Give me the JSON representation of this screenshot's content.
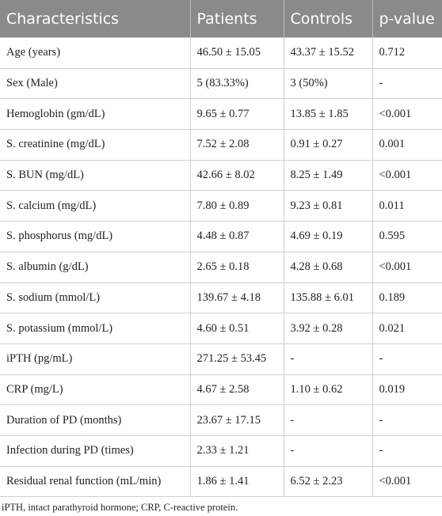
{
  "table": {
    "header": [
      "Characteristics",
      "Patients",
      "Controls",
      "p-value"
    ],
    "rows": [
      [
        "Age (years)",
        "46.50 ± 15.05",
        "43.37 ± 15.52",
        "0.712"
      ],
      [
        "Sex (Male)",
        "5 (83.33%)",
        "3 (50%)",
        "-"
      ],
      [
        "Hemoglobin (gm/dL)",
        "9.65 ± 0.77",
        "13.85 ± 1.85",
        "<0.001"
      ],
      [
        "S. creatinine (mg/dL)",
        "7.52 ± 2.08",
        "0.91 ± 0.27",
        "0.001"
      ],
      [
        "S. BUN (mg/dL)",
        "42.66 ± 8.02",
        "8.25 ± 1.49",
        "<0.001"
      ],
      [
        "S. calcium (mg/dL)",
        "7.80 ± 0.89",
        "9.23 ± 0.81",
        "0.011"
      ],
      [
        "S. phosphorus (mg/dL)",
        "4.48 ± 0.87",
        "4.69 ± 0.19",
        "0.595"
      ],
      [
        "S. albumin (g/dL)",
        "2.65 ± 0.18",
        "4.28 ± 0.68",
        "<0.001"
      ],
      [
        "S. sodium (mmol/L)",
        "139.67 ± 4.18",
        "135.88 ± 6.01",
        "0.189"
      ],
      [
        "S. potassium (mmol/L)",
        "4.60 ± 0.51",
        "3.92 ± 0.28",
        "0.021"
      ],
      [
        "iPTH (pg/mL)",
        "271.25 ± 53.45",
        "-",
        "-"
      ],
      [
        "CRP (mg/L)",
        "4.67 ± 2.58",
        "1.10 ± 0.62",
        "0.019"
      ],
      [
        "Duration of PD (months)",
        "23.67 ± 17.15",
        "-",
        "-"
      ],
      [
        "Infection during PD (times)",
        "2.33 ± 1.21",
        "-",
        "-"
      ],
      [
        "Residual renal function (mL/min)",
        "1.86 ± 1.41",
        "6.52 ± 2.23",
        "<0.001"
      ]
    ]
  },
  "footnote": "iPTH, intact parathyroid hormone; CRP, C-reactive protein."
}
